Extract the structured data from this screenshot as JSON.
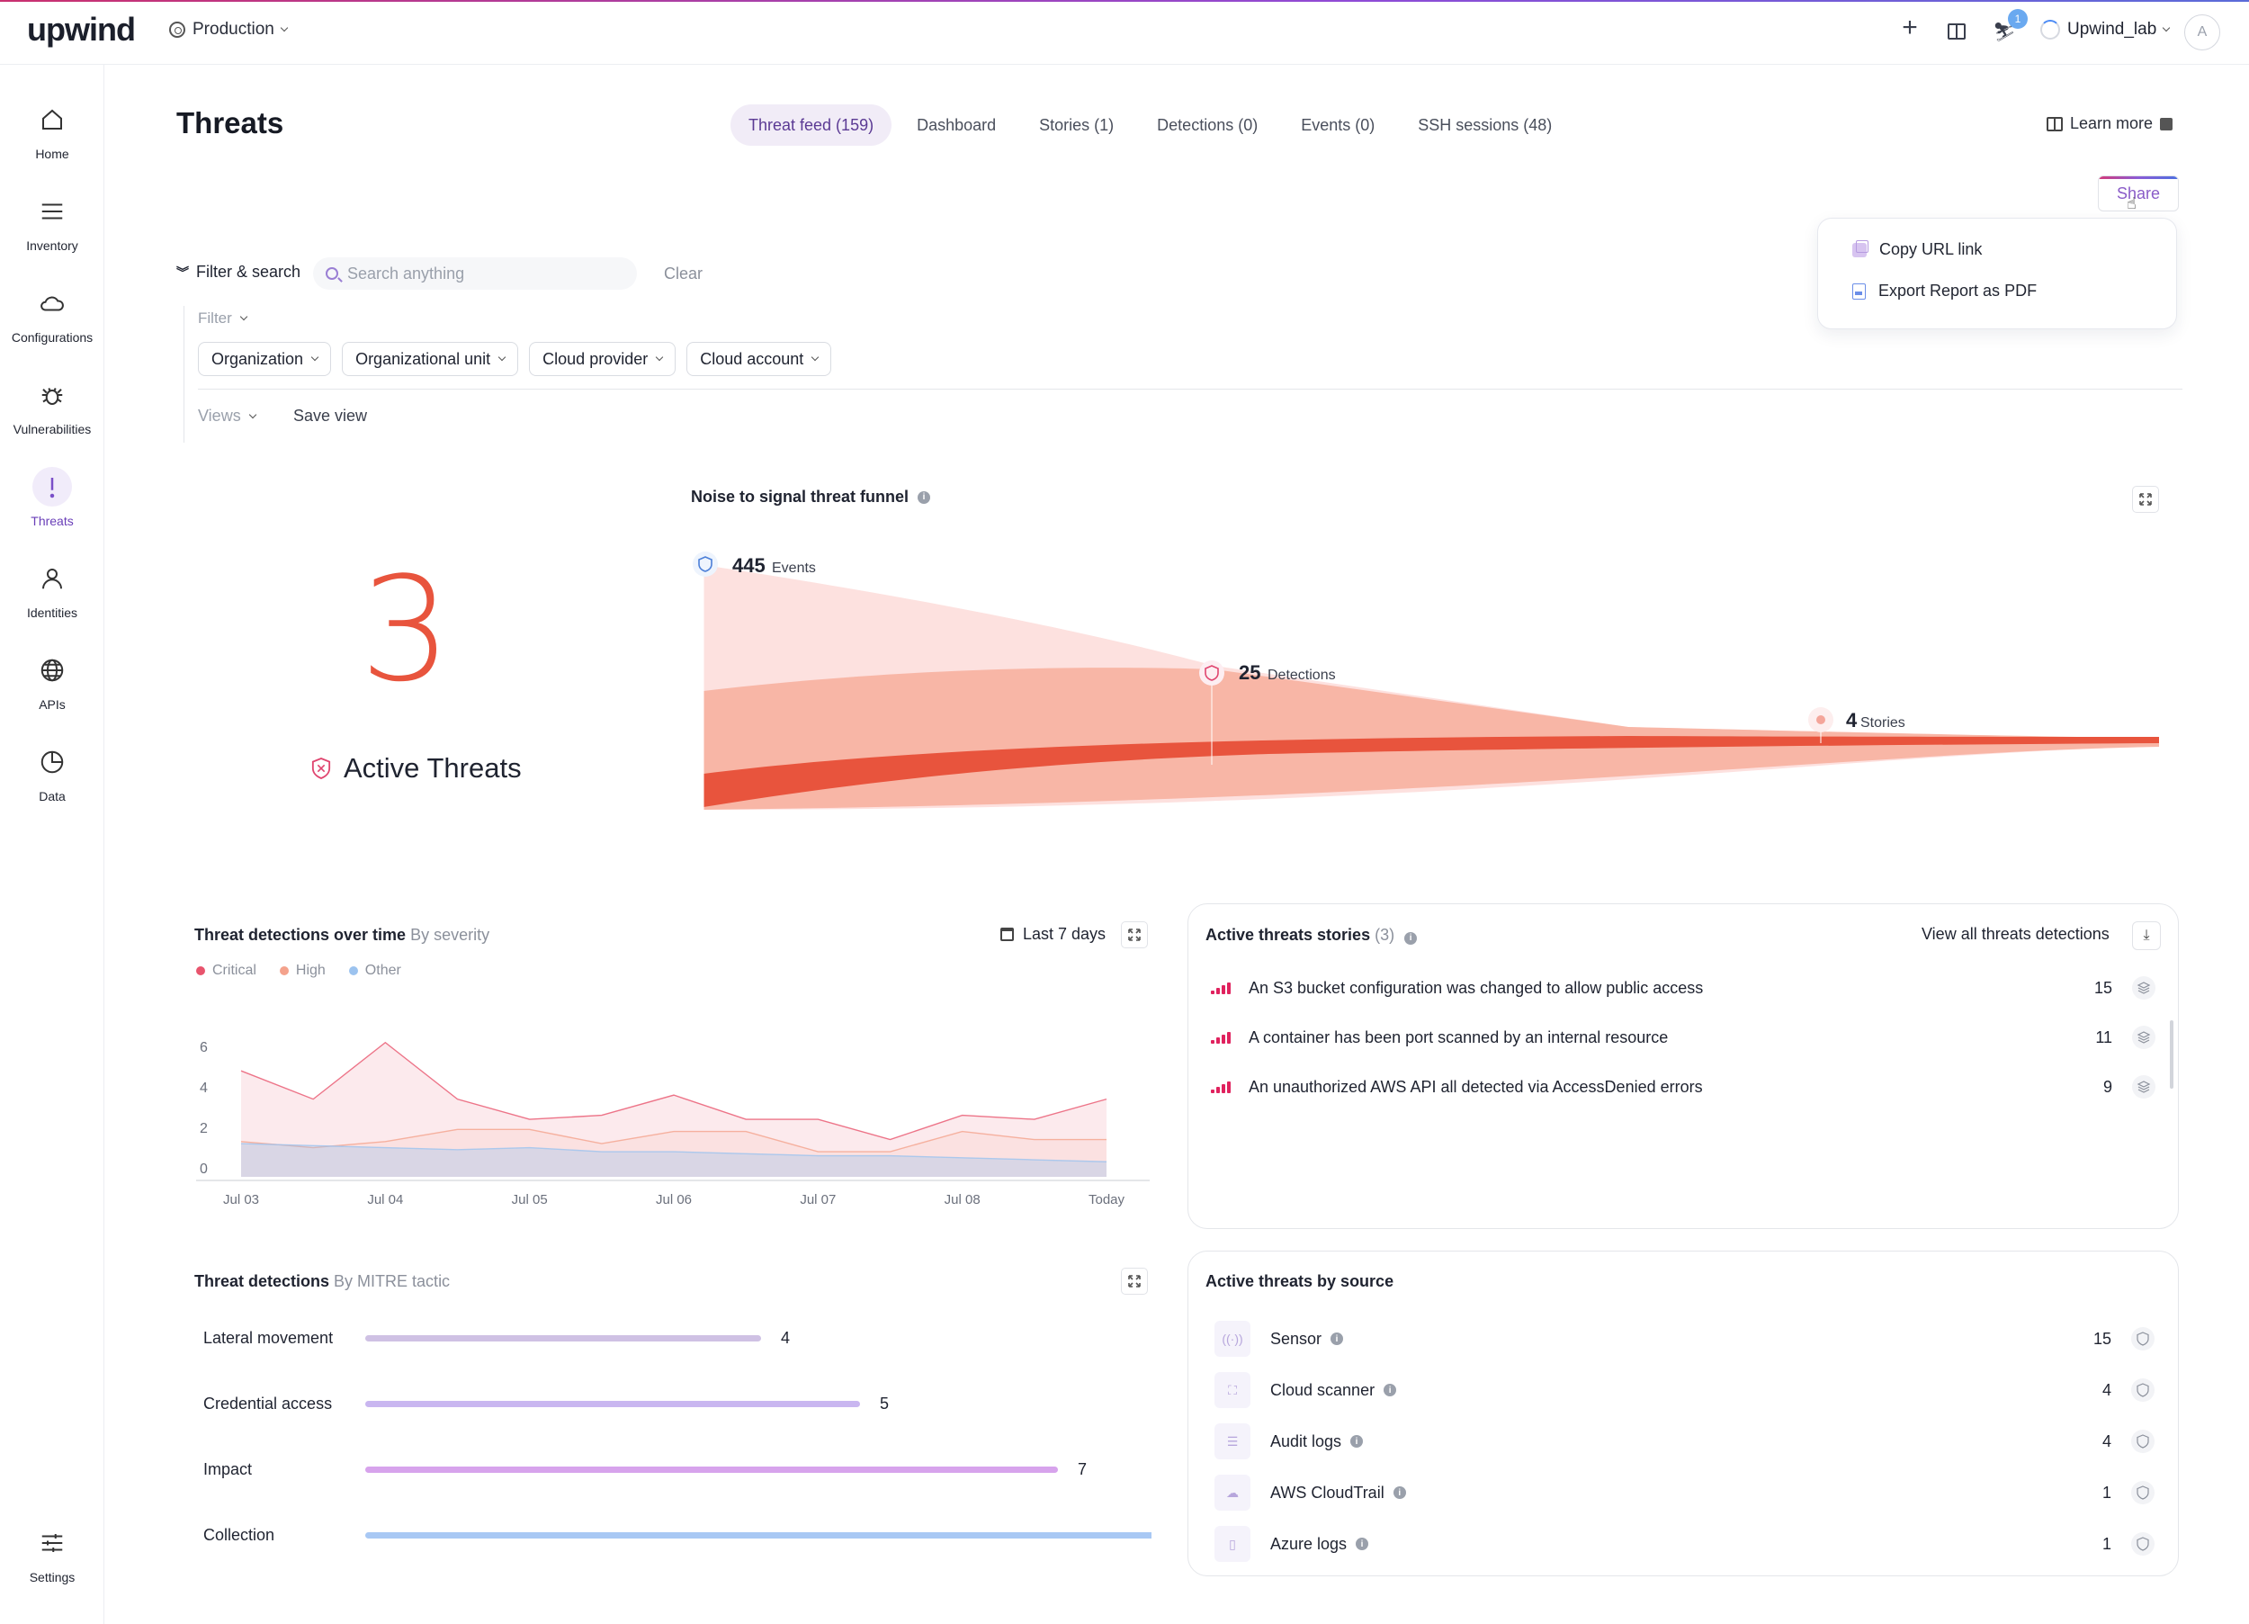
{
  "app": {
    "logo": "upwind",
    "environment": "Production",
    "org": "Upwind_lab",
    "avatar_initial": "A",
    "notification_count": "1",
    "accent": "#e8543d"
  },
  "sidebar": {
    "items": [
      {
        "label": "Home",
        "icon": "home-icon"
      },
      {
        "label": "Inventory",
        "icon": "list-icon"
      },
      {
        "label": "Configurations",
        "icon": "cloud-icon"
      },
      {
        "label": "Vulnerabilities",
        "icon": "bug-icon"
      },
      {
        "label": "Threats",
        "icon": "exclamation-icon",
        "active": true
      },
      {
        "label": "Identities",
        "icon": "person-icon"
      },
      {
        "label": "APIs",
        "icon": "globe-icon"
      },
      {
        "label": "Data",
        "icon": "pie-icon"
      }
    ],
    "settings_label": "Settings"
  },
  "header": {
    "title": "Threats",
    "tabs": [
      {
        "label": "Threat feed (159)",
        "active": true
      },
      {
        "label": "Dashboard"
      },
      {
        "label": "Stories (1)"
      },
      {
        "label": "Detections (0)"
      },
      {
        "label": "Events (0)"
      },
      {
        "label": "SSH sessions (48)"
      }
    ],
    "learn_more": "Learn more",
    "share": "Share"
  },
  "share_menu": {
    "copy_url": "Copy URL link",
    "export_pdf": "Export Report as PDF"
  },
  "filter": {
    "toggle_label": "Filter & search",
    "search_placeholder": "Search anything",
    "clear": "Clear",
    "filter_label": "Filter",
    "chips": [
      "Organization",
      "Organizational unit",
      "Cloud provider",
      "Cloud account"
    ],
    "views": "Views",
    "save_view": "Save view"
  },
  "hero": {
    "active_count": "3",
    "active_label": "Active Threats"
  },
  "funnel": {
    "title": "Noise to signal threat funnel",
    "stages": [
      {
        "value": "445",
        "label": "Events"
      },
      {
        "value": "25",
        "label": "Detections"
      },
      {
        "value": "4",
        "label": "Stories"
      }
    ]
  },
  "timeline": {
    "title": "Threat detections over time",
    "subtitle": "By severity",
    "date_range": "Last 7 days",
    "legend": [
      {
        "name": "Critical",
        "color": "#e8546d"
      },
      {
        "name": "High",
        "color": "#f4a28c"
      },
      {
        "name": "Other",
        "color": "#9cc3ef"
      }
    ]
  },
  "stories": {
    "title": "Active threats stories",
    "count": "(3)",
    "view_all": "View all threats detections",
    "items": [
      {
        "title": "An S3 bucket configuration was changed to allow public access",
        "count": "15"
      },
      {
        "title": "A container has been port scanned by an internal resource",
        "count": "11"
      },
      {
        "title": "An unauthorized AWS API all detected via AccessDenied errors",
        "count": "9"
      }
    ]
  },
  "mitre": {
    "title": "Threat detections",
    "subtitle": "By MITRE tactic"
  },
  "sources": {
    "title": "Active threats by source",
    "items": [
      {
        "name": "Sensor",
        "count": "15",
        "icon": "sensor-icon"
      },
      {
        "name": "Cloud scanner",
        "count": "4",
        "icon": "scanner-icon"
      },
      {
        "name": "Audit logs",
        "count": "4",
        "icon": "log-icon"
      },
      {
        "name": "AWS CloudTrail",
        "count": "1",
        "icon": "cloud-icon"
      },
      {
        "name": "Azure logs",
        "count": "1",
        "icon": "doc-icon"
      }
    ]
  },
  "chart_data": [
    {
      "type": "area",
      "title": "Threat detections over time",
      "categories": [
        "Jul 03",
        "Jul 04",
        "Jul 05",
        "Jul 06",
        "Jul 07",
        "Jul 08",
        "Today"
      ],
      "x": [
        0,
        0.5,
        1,
        1.5,
        2,
        2.5,
        3,
        3.5,
        4,
        4.5,
        5,
        5.5,
        6
      ],
      "yticks": [
        6,
        4,
        2,
        0
      ],
      "ylim": [
        0,
        6.5
      ],
      "grid": false,
      "series": [
        {
          "name": "Critical",
          "color": "#e8546d",
          "values": [
            4.8,
            3.4,
            6.2,
            3.4,
            2.4,
            2.6,
            3.6,
            2.4,
            2.4,
            1.4,
            2.6,
            2.4,
            3.4
          ]
        },
        {
          "name": "High",
          "color": "#f4a28c",
          "values": [
            1.3,
            1.0,
            1.3,
            1.9,
            1.9,
            1.2,
            1.8,
            1.8,
            0.8,
            0.8,
            1.8,
            1.4,
            1.4
          ]
        },
        {
          "name": "Other",
          "color": "#9cc3ef",
          "values": [
            1.2,
            1.1,
            1.0,
            0.9,
            1.0,
            0.8,
            0.8,
            0.7,
            0.6,
            0.6,
            0.5,
            0.4,
            0.3
          ]
        }
      ]
    },
    {
      "type": "bar",
      "title": "Threat detections",
      "categories": [
        "Lateral movement",
        "Credential access",
        "Impact",
        "Collection"
      ],
      "values": [
        4,
        5,
        7,
        9
      ],
      "colors": [
        "#cfc1e4",
        "#c9b6f0",
        "#d7a3ec",
        "#a8c8f4"
      ],
      "xlim": [
        0,
        9
      ]
    },
    {
      "type": "area",
      "title": "Noise to signal threat funnel",
      "categories": [
        "Events",
        "Detections",
        "Stories"
      ],
      "values": [
        445,
        25,
        4
      ]
    }
  ]
}
